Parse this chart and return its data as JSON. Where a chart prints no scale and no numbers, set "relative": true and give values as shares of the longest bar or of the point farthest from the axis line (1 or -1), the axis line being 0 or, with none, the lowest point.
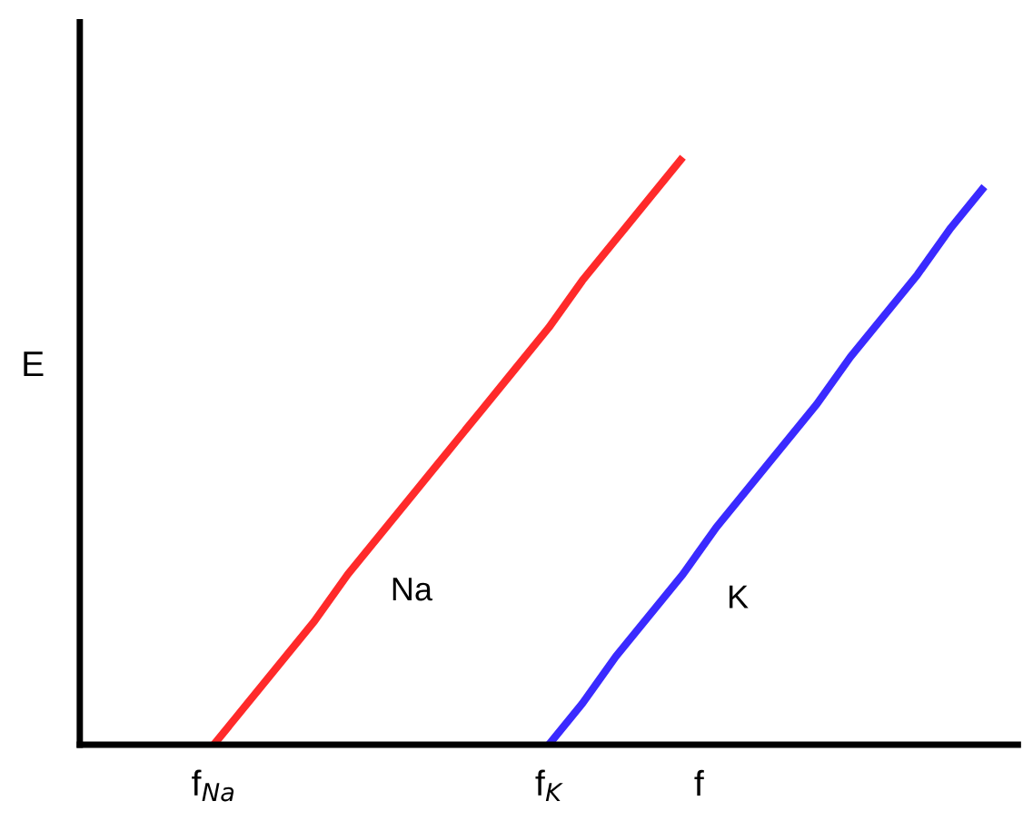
{
  "chart_data": {
    "type": "line",
    "relative": true,
    "xlabel": "f",
    "ylabel": "E",
    "categories": [
      null,
      null,
      null,
      null,
      "f$_{Na}$",
      null,
      null,
      null,
      null,
      null,
      null,
      null,
      null,
      null,
      "f$_{K}$",
      null,
      null,
      null,
      null,
      null,
      null,
      null,
      null,
      null,
      null,
      null,
      null,
      null,
      null
    ],
    "series": [
      {
        "name": "Na",
        "color": "#ff2a2a",
        "values": [
          null,
          null,
          null,
          null,
          0,
          0.07,
          0.14,
          0.21,
          0.29,
          0.36,
          0.43,
          0.5,
          0.57,
          0.64,
          0.71,
          0.79,
          0.86,
          0.93,
          1,
          null,
          null,
          null,
          null,
          null,
          null,
          null,
          null,
          null,
          null
        ]
      },
      {
        "name": "K",
        "color": "#3a2aff",
        "values": [
          null,
          null,
          null,
          null,
          null,
          null,
          null,
          null,
          null,
          null,
          null,
          null,
          null,
          null,
          0,
          0.07,
          0.15,
          0.22,
          0.29,
          0.37,
          0.44,
          0.51,
          0.58,
          0.66,
          0.73,
          0.8,
          0.88,
          0.95,
          null
        ]
      }
    ],
    "legend": false,
    "marker": "none",
    "line_style": "solid"
  }
}
